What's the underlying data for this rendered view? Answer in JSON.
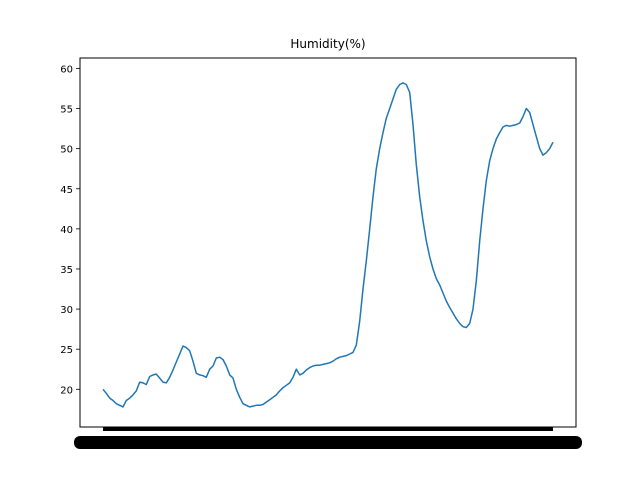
{
  "chart_data": {
    "type": "line",
    "title": "Humidity(%)",
    "xlabel": "",
    "ylabel": "",
    "ylim": [
      15.3,
      61.3
    ],
    "yticks": [
      20,
      25,
      30,
      35,
      40,
      45,
      50,
      55,
      60
    ],
    "x_tick_labels_note": "",
    "grid": false,
    "series": [
      {
        "name": "",
        "color": "#1f77b4",
        "values": [
          20.0,
          19.5,
          18.9,
          18.6,
          18.2,
          18.0,
          17.8,
          18.6,
          18.9,
          19.3,
          19.8,
          20.9,
          20.8,
          20.6,
          21.6,
          21.8,
          21.9,
          21.4,
          20.9,
          20.8,
          21.5,
          22.4,
          23.4,
          24.4,
          25.4,
          25.2,
          24.8,
          23.5,
          22.0,
          21.8,
          21.7,
          21.5,
          22.5,
          22.9,
          23.9,
          24.0,
          23.7,
          22.9,
          21.8,
          21.4,
          20.0,
          19.0,
          18.2,
          18.0,
          17.8,
          17.9,
          18.0,
          18.0,
          18.1,
          18.4,
          18.7,
          19.0,
          19.3,
          19.8,
          20.2,
          20.5,
          20.8,
          21.5,
          22.5,
          21.8,
          22.0,
          22.4,
          22.7,
          22.9,
          23.0,
          23.0,
          23.1,
          23.2,
          23.3,
          23.5,
          23.8,
          24.0,
          24.1,
          24.2,
          24.4,
          24.6,
          25.5,
          28.5,
          32.5,
          36.0,
          40.0,
          44.0,
          47.5,
          50.0,
          52.0,
          53.8,
          55.0,
          56.2,
          57.4,
          58.0,
          58.2,
          58.0,
          57.0,
          53.0,
          48.0,
          44.0,
          41.0,
          38.5,
          36.5,
          35.0,
          33.8,
          33.0,
          32.0,
          31.0,
          30.2,
          29.5,
          28.8,
          28.2,
          27.8,
          27.7,
          28.2,
          30.0,
          33.5,
          38.5,
          42.5,
          46.0,
          48.5,
          50.0,
          51.2,
          52.0,
          52.7,
          52.9,
          52.8,
          52.9,
          53.0,
          53.2,
          54.0,
          55.0,
          54.5,
          53.0,
          51.5,
          50.0,
          49.2,
          49.5,
          50.0,
          50.8
        ]
      }
    ]
  }
}
